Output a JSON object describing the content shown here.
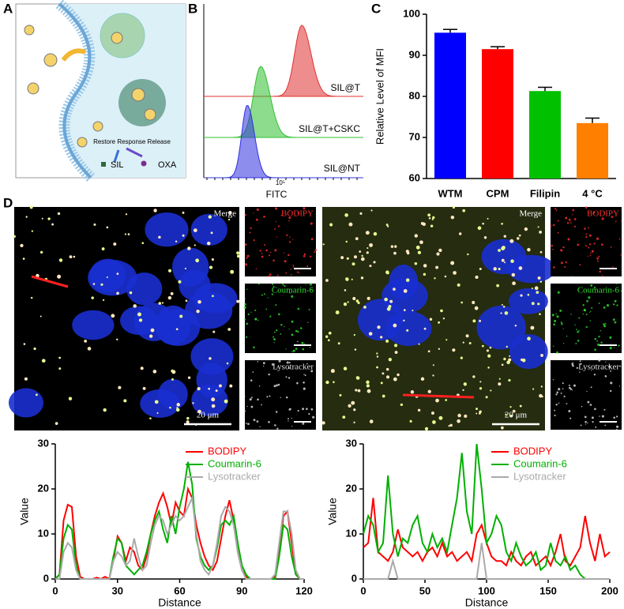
{
  "panel_a": {
    "label": "A",
    "caption": "Restore Response Release",
    "products": [
      "SIL",
      "OXA"
    ]
  },
  "panel_b": {
    "label": "B",
    "samples": [
      "SIL@T",
      "SIL@T+CSKC",
      "SIL@NT"
    ],
    "xtick": "10⁵",
    "xlabel": "FITC"
  },
  "panel_d": {
    "label": "D",
    "images": [
      {
        "merge": "Merge",
        "channels": [
          "BODIPY",
          "Coumarin-6",
          "Lysotracker"
        ],
        "scale": "20 μm"
      },
      {
        "merge": "Merge",
        "channels": [
          "BODIPY",
          "Coumarin-6",
          "Lysotracker"
        ],
        "scale": "20 μm"
      }
    ]
  },
  "chart_data": [
    {
      "type": "bar",
      "label": "C",
      "ylabel": "Relative Level of MFI",
      "categories": [
        "WTM",
        "CPM",
        "Filipin",
        "4 °C"
      ],
      "values": [
        95.5,
        91.5,
        81.3,
        73.5
      ],
      "errors": [
        0.8,
        0.6,
        0.9,
        1.2
      ],
      "colors": [
        "#0000ff",
        "#ff0000",
        "#00c000",
        "#ff7f00"
      ],
      "ylim": [
        60,
        100
      ],
      "yticks": [
        60,
        70,
        80,
        90,
        100
      ]
    },
    {
      "type": "line",
      "xlabel": "Distance",
      "ylabel": "Value",
      "legend": "top-right",
      "x": [
        0,
        2,
        4,
        6,
        8,
        10,
        12,
        14,
        16,
        18,
        20,
        22,
        24,
        26,
        28,
        30,
        32,
        34,
        36,
        38,
        40,
        42,
        44,
        46,
        48,
        50,
        52,
        54,
        56,
        58,
        60,
        62,
        64,
        66,
        68,
        70,
        72,
        74,
        76,
        78,
        80,
        82,
        84,
        86,
        88,
        90,
        92,
        94,
        96,
        98,
        100,
        102,
        104,
        106,
        108,
        110,
        112,
        114,
        116,
        118,
        120
      ],
      "series": [
        {
          "name": "BODIPY",
          "color": "#ff0000",
          "values": [
            0,
            1,
            13,
            16.5,
            16,
            5,
            0.5,
            0,
            0,
            0,
            0.3,
            0,
            0.5,
            0,
            4,
            9.5,
            8,
            4,
            7,
            6,
            3,
            2,
            5,
            10,
            14,
            17,
            19,
            16,
            12,
            17,
            15,
            14,
            20,
            18,
            12,
            8,
            5,
            3,
            2,
            4,
            9,
            14,
            17.5,
            13,
            6,
            2,
            0.5,
            0,
            0,
            0,
            0,
            0,
            0,
            0.5,
            6,
            14,
            15,
            8,
            1,
            0,
            0
          ]
        },
        {
          "name": "Coumarin-6",
          "color": "#00b000",
          "values": [
            0,
            1,
            9,
            12,
            11,
            3,
            0,
            0,
            0,
            0,
            0,
            0,
            0,
            0,
            5,
            9,
            8,
            3,
            2,
            1,
            2,
            3,
            6,
            10,
            13,
            15,
            11,
            8,
            14,
            10,
            16,
            20,
            26,
            21,
            9,
            5,
            3,
            2,
            3,
            7,
            12,
            13,
            12,
            14,
            8,
            3,
            1,
            0,
            0,
            0,
            0,
            0,
            0,
            0,
            5,
            12,
            11,
            5,
            1,
            0,
            0
          ]
        },
        {
          "name": "Lysotracker",
          "color": "#aaaaaa",
          "values": [
            0,
            0,
            6,
            8,
            7,
            2,
            0,
            0,
            0,
            0,
            0,
            0,
            0,
            0,
            4,
            6,
            5,
            3,
            4,
            9,
            5,
            2,
            3,
            8,
            12,
            14,
            13,
            10,
            12,
            14,
            13,
            14,
            16,
            18,
            10,
            4,
            2,
            1,
            3,
            8,
            14,
            16,
            15,
            12,
            6,
            2,
            0,
            0,
            0,
            0,
            0,
            0,
            0,
            1,
            8,
            15,
            15,
            10,
            2,
            0,
            0
          ]
        }
      ],
      "xlim": [
        0,
        120
      ],
      "xticks": [
        0,
        30,
        60,
        90,
        120
      ],
      "ylim": [
        0,
        30
      ],
      "yticks": [
        0,
        10,
        20,
        30
      ]
    },
    {
      "type": "line",
      "xlabel": "Distance",
      "ylabel": "Value",
      "legend": "top-right",
      "x": [
        0,
        4,
        8,
        12,
        16,
        20,
        24,
        28,
        32,
        36,
        40,
        44,
        48,
        52,
        56,
        60,
        64,
        68,
        72,
        76,
        80,
        84,
        88,
        92,
        96,
        100,
        104,
        108,
        112,
        116,
        120,
        124,
        128,
        132,
        136,
        140,
        144,
        148,
        152,
        156,
        160,
        164,
        168,
        172,
        176,
        180,
        184,
        188,
        192,
        196,
        200
      ],
      "series": [
        {
          "name": "BODIPY",
          "color": "#ff0000",
          "values": [
            7,
            8,
            18,
            6,
            5,
            4,
            6,
            11,
            7,
            6,
            5,
            6,
            4,
            6,
            7,
            5,
            8,
            5,
            6,
            4,
            5,
            6,
            4,
            10,
            12,
            8,
            5,
            4,
            4,
            3,
            6,
            4,
            3,
            5,
            6,
            3,
            4,
            5,
            3,
            6,
            10,
            4,
            3,
            5,
            7,
            14,
            8,
            4,
            10,
            5,
            6
          ]
        },
        {
          "name": "Coumarin-6",
          "color": "#00b000",
          "values": [
            10,
            14,
            12,
            6,
            8,
            23,
            10,
            5,
            9,
            8,
            12,
            14,
            8,
            6,
            10,
            7,
            9,
            6,
            12,
            18,
            28,
            15,
            10,
            30,
            20,
            8,
            10,
            14,
            12,
            6,
            4,
            8,
            5,
            3,
            4,
            6,
            2,
            3,
            8,
            4,
            3,
            5,
            2,
            3,
            1,
            0,
            0,
            0,
            0,
            0,
            0
          ]
        },
        {
          "name": "Lysotracker",
          "color": "#aaaaaa",
          "values": [
            0,
            0,
            0,
            0,
            0,
            0,
            4,
            0,
            0,
            0,
            0,
            0,
            0,
            0,
            0,
            0,
            0,
            0,
            0,
            0,
            0,
            0,
            0,
            0,
            8,
            0,
            0,
            0,
            0,
            0,
            0,
            0,
            0,
            0,
            0,
            0,
            0,
            0,
            0,
            0,
            0,
            0,
            0,
            0,
            0,
            0,
            0,
            0,
            0,
            0,
            0
          ]
        }
      ],
      "xlim": [
        0,
        200
      ],
      "xticks": [
        0,
        50,
        100,
        150,
        200
      ],
      "ylim": [
        0,
        30
      ],
      "yticks": [
        0,
        10,
        20,
        30
      ]
    }
  ]
}
